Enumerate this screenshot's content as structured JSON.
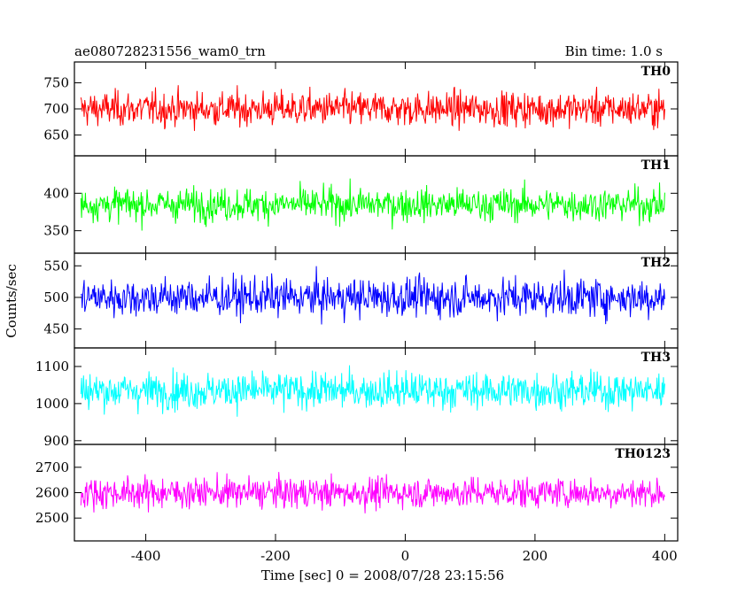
{
  "header": {
    "title": "ae080728231556_wam0_trn",
    "bin_time": "Bin time: 1.0 s"
  },
  "chart_data": {
    "type": "line",
    "xlabel": "Time [sec] 0 = 2008/07/28 23:15:56",
    "ylabel": "Counts/sec",
    "xlim": [
      -510,
      420
    ],
    "x_range": [
      -500,
      400
    ],
    "x_step": 1,
    "x_ticks": [
      "-400",
      "-200",
      "0",
      "200",
      "400"
    ],
    "panels": [
      {
        "name": "TH0",
        "color": "#ff0000",
        "mean": 700,
        "spread": 30,
        "ylim": [
          610,
          790
        ],
        "yticks": [
          "650",
          "700",
          "750"
        ]
      },
      {
        "name": "TH1",
        "color": "#00ff00",
        "mean": 385,
        "spread": 20,
        "ylim": [
          320,
          450
        ],
        "yticks": [
          "350",
          "400"
        ]
      },
      {
        "name": "TH2",
        "color": "#0000ff",
        "mean": 500,
        "spread": 28,
        "ylim": [
          420,
          570
        ],
        "yticks": [
          "450",
          "500",
          "550"
        ]
      },
      {
        "name": "TH3",
        "color": "#00ffff",
        "mean": 1035,
        "spread": 45,
        "ylim": [
          890,
          1150
        ],
        "yticks": [
          "900",
          "1000",
          "1100"
        ]
      },
      {
        "name": "TH0123",
        "color": "#ff00ff",
        "mean": 2600,
        "spread": 55,
        "ylim": [
          2410,
          2790
        ],
        "yticks": [
          "2500",
          "2600",
          "2700"
        ]
      }
    ]
  }
}
